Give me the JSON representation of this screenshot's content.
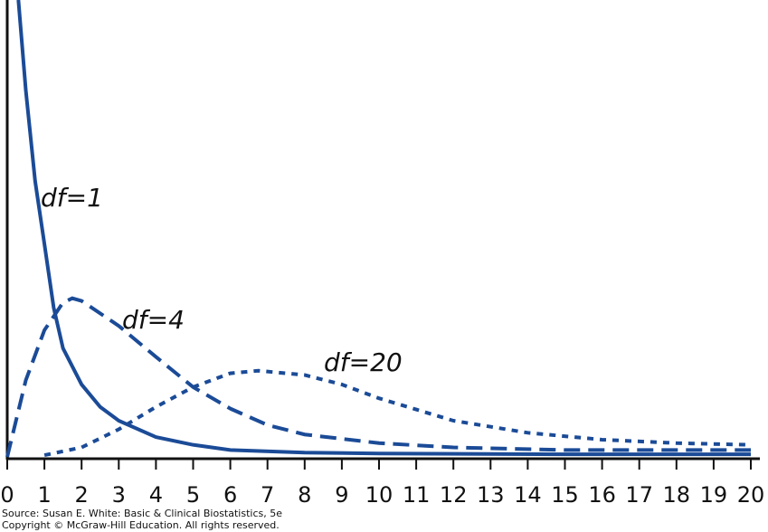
{
  "chart_data": {
    "type": "line",
    "xlim": [
      0,
      20
    ],
    "xticks": [
      0,
      1,
      2,
      3,
      4,
      5,
      6,
      7,
      8,
      9,
      10,
      11,
      12,
      13,
      14,
      15,
      16,
      17,
      18,
      19,
      20
    ],
    "ylim": [
      0,
      0.53
    ],
    "series": [
      {
        "name": "df=1",
        "color": "#1b4b97",
        "line_style": "solid",
        "x": [
          0.3,
          0.5,
          0.75,
          1,
          1.25,
          1.5,
          2,
          2.5,
          3,
          4,
          5,
          6,
          8,
          10,
          15,
          20
        ],
        "values": [
          0.53,
          0.425,
          0.32,
          0.247,
          0.173,
          0.126,
          0.084,
          0.058,
          0.042,
          0.023,
          0.014,
          0.008,
          0.005,
          0.004,
          0.003,
          0.003
        ]
      },
      {
        "name": "df=4",
        "color": "#1b4b97",
        "line_style": "dashed",
        "x": [
          0,
          0.5,
          1,
          1.5,
          1.75,
          2,
          3,
          4,
          5,
          6,
          7,
          8,
          10,
          12,
          15,
          20
        ],
        "values": [
          0,
          0.089,
          0.147,
          0.179,
          0.184,
          0.181,
          0.152,
          0.116,
          0.081,
          0.056,
          0.037,
          0.026,
          0.016,
          0.011,
          0.008,
          0.008
        ]
      },
      {
        "name": "df=20",
        "color": "#1b4b97",
        "line_style": "dotted",
        "x": [
          1,
          2,
          3,
          4,
          5,
          6,
          6.75,
          8,
          9,
          10,
          11,
          12,
          14,
          16,
          18,
          20
        ],
        "values": [
          0.002,
          0.011,
          0.032,
          0.058,
          0.081,
          0.097,
          0.1,
          0.095,
          0.084,
          0.068,
          0.055,
          0.042,
          0.028,
          0.02,
          0.016,
          0.014
        ]
      }
    ],
    "source": "Source: Susan E. White: Basic & Clinical Biostatistics, 5e",
    "copyright": "Copyright © McGraw-Hill Education. All rights reserved."
  }
}
